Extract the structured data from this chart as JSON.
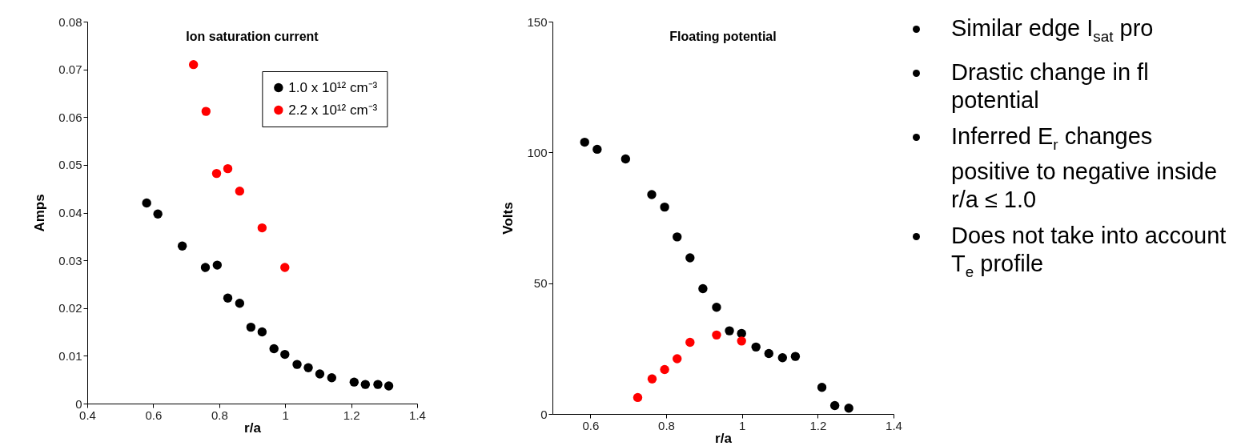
{
  "chart_data": [
    {
      "type": "scatter",
      "title": "Ion saturation current",
      "xlabel": "r/a",
      "ylabel": "Amps",
      "xlim": [
        0.4,
        1.4
      ],
      "xticks": [
        0.4,
        0.6,
        0.8,
        1,
        1.2,
        1.4
      ],
      "ylim": [
        0,
        0.08
      ],
      "yticks": [
        0,
        0.01,
        0.02,
        0.03,
        0.04,
        0.05,
        0.06,
        0.07,
        0.08
      ],
      "marker": "circle",
      "legend": "top right",
      "series": [
        {
          "name": "1.0 x 10¹² cm⁻³",
          "color": "#000000",
          "x": [
            0.58,
            0.614,
            0.688,
            0.758,
            0.794,
            0.826,
            0.862,
            0.896,
            0.93,
            0.966,
            0.999,
            1.036,
            1.07,
            1.105,
            1.141,
            1.209,
            1.243,
            1.281,
            1.314
          ],
          "values": [
            0.042,
            0.0397,
            0.033,
            0.0285,
            0.029,
            0.0221,
            0.021,
            0.016,
            0.015,
            0.0115,
            0.0103,
            0.0082,
            0.0075,
            0.0062,
            0.0054,
            0.0045,
            0.004,
            0.004,
            0.0037
          ]
        },
        {
          "name": "2.2 x 10¹² cm⁻³",
          "color": "#ff0000",
          "x": [
            0.722,
            0.76,
            0.792,
            0.826,
            0.862,
            0.93,
            0.999
          ],
          "values": [
            0.071,
            0.0612,
            0.0482,
            0.0492,
            0.0445,
            0.0368,
            0.0285
          ]
        }
      ]
    },
    {
      "type": "scatter",
      "title": "Floating potential",
      "xlabel": "r/a",
      "ylabel": "Volts",
      "xlim": [
        0.5,
        1.4
      ],
      "xticks": [
        0.6,
        0.8,
        1,
        1.2,
        1.4
      ],
      "ylim": [
        0,
        150
      ],
      "yticks": [
        0,
        50,
        100,
        150
      ],
      "marker": "circle",
      "series": [
        {
          "color": "#000000",
          "x": [
            0.585,
            0.618,
            0.693,
            0.762,
            0.796,
            0.829,
            0.863,
            0.897,
            0.933,
            0.967,
            0.999,
            1.037,
            1.071,
            1.107,
            1.141,
            1.211,
            1.245,
            1.282
          ],
          "values": [
            103.9,
            101.2,
            97.5,
            83.9,
            79.1,
            67.7,
            59.7,
            47.9,
            40.8,
            31.8,
            30.8,
            25.6,
            23.1,
            21.5,
            22.0,
            10.2,
            3.2,
            2.2
          ]
        },
        {
          "color": "#ff0000",
          "x": [
            0.725,
            0.763,
            0.796,
            0.829,
            0.863,
            0.933,
            0.999
          ],
          "values": [
            6.3,
            13.4,
            17.0,
            21.1,
            27.4,
            30.2,
            27.9
          ]
        }
      ]
    },
    {
      "type": "other",
      "annotations": [
        "Similar edge I$_{sat}$ pro",
        "Drastic change in fl potential",
        "Inferred E$_{r}$ changes positive to negative inside r/a ≤ 1.0",
        "Does not take into account T$_{e}$ profile"
      ]
    }
  ]
}
